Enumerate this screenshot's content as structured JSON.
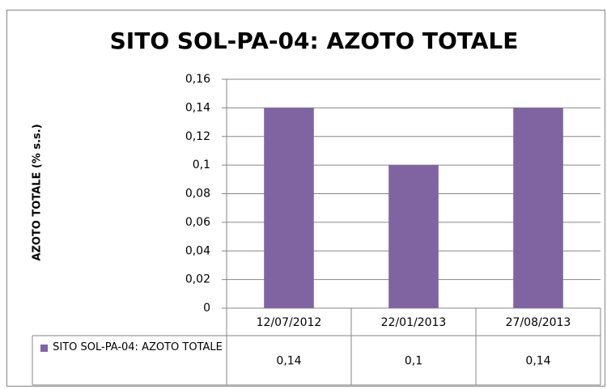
{
  "chart_data": {
    "type": "bar",
    "title": "SITO SOL-PA-04: AZOTO TOTALE",
    "y_label": "AZOTO TOTALE (% s.s.)",
    "categories": [
      "12/07/2012",
      "22/01/2013",
      "27/08/2013"
    ],
    "series": [
      {
        "name": "SITO SOL-PA-04: AZOTO TOTALE",
        "color": "#8064a2",
        "values": [
          0.14,
          0.1,
          0.14
        ],
        "value_labels": [
          "0,14",
          "0,1",
          "0,14"
        ]
      }
    ],
    "ylim": [
      0,
      0.16
    ],
    "yticks": [
      0,
      {
        "value": 0.02,
        "label": "0,02"
      },
      {
        "value": 0.04,
        "label": "0,04"
      },
      {
        "value": 0.06,
        "label": "0,06"
      },
      {
        "value": 0.08,
        "label": "0,08"
      },
      {
        "value": 0.1,
        "label": "0,1"
      },
      {
        "value": 0.12,
        "label": "0,12"
      },
      {
        "value": 0.14,
        "label": "0,14"
      },
      {
        "value": 0.16,
        "label": "0,16"
      }
    ],
    "grid": true,
    "data_table": true
  }
}
